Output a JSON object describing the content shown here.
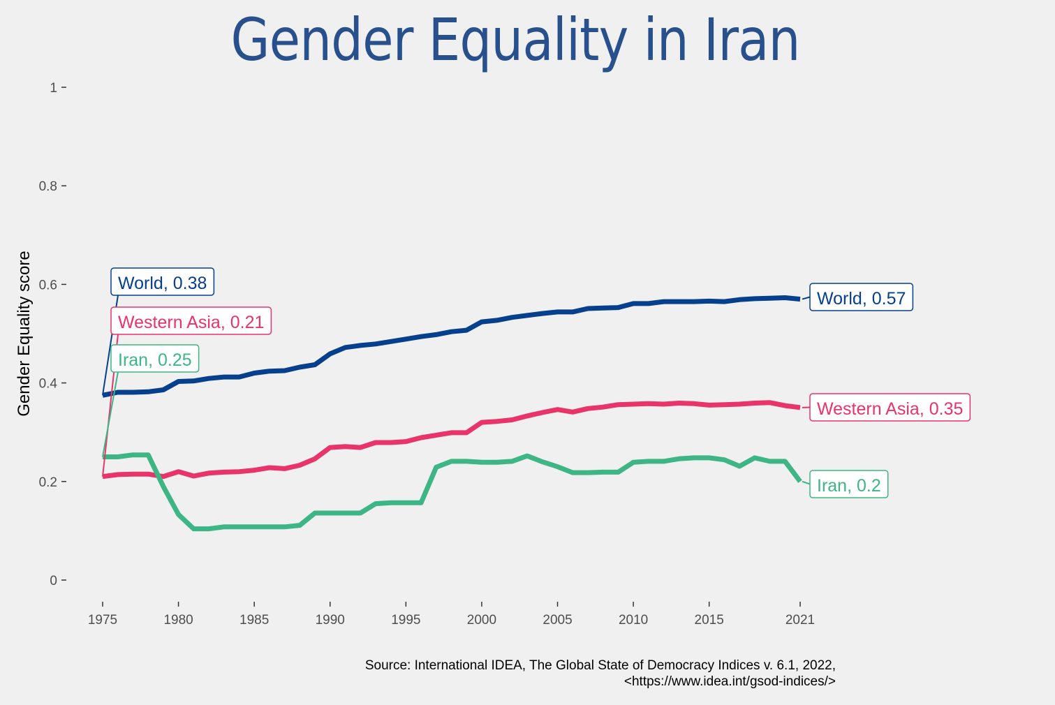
{
  "chart_data": {
    "type": "line",
    "title": "Gender Equality in Iran",
    "ylabel": "Gender Equality score",
    "xlabel": "",
    "ylim": [
      0,
      1
    ],
    "yticks": [
      0,
      0.2,
      0.4,
      0.6,
      0.8,
      1
    ],
    "ytick_labels": [
      "0",
      "0.2",
      "0.4",
      "0.6",
      "0.8",
      "1"
    ],
    "xticks": [
      1975,
      1980,
      1985,
      1990,
      1995,
      2000,
      2005,
      2010,
      2015,
      2021
    ],
    "xtick_labels": [
      "1975",
      "1980",
      "1985",
      "1990",
      "1995",
      "2000",
      "2005",
      "2010",
      "2015",
      "2021"
    ],
    "grid": false,
    "x": [
      1975,
      1976,
      1977,
      1978,
      1979,
      1980,
      1981,
      1982,
      1983,
      1984,
      1985,
      1986,
      1987,
      1988,
      1989,
      1990,
      1991,
      1992,
      1993,
      1994,
      1995,
      1996,
      1997,
      1998,
      1999,
      2000,
      2001,
      2002,
      2003,
      2004,
      2005,
      2006,
      2007,
      2008,
      2009,
      2010,
      2011,
      2012,
      2013,
      2014,
      2015,
      2016,
      2017,
      2018,
      2019,
      2020,
      2021
    ],
    "series": [
      {
        "name": "World",
        "color": "#063f8c",
        "values": [
          0.375,
          0.381,
          0.381,
          0.382,
          0.386,
          0.403,
          0.404,
          0.409,
          0.412,
          0.412,
          0.42,
          0.424,
          0.425,
          0.432,
          0.437,
          0.459,
          0.472,
          0.476,
          0.479,
          0.484,
          0.489,
          0.494,
          0.498,
          0.504,
          0.507,
          0.524,
          0.527,
          0.533,
          0.537,
          0.541,
          0.544,
          0.544,
          0.551,
          0.552,
          0.553,
          0.561,
          0.561,
          0.565,
          0.565,
          0.565,
          0.566,
          0.565,
          0.569,
          0.571,
          0.572,
          0.573,
          0.57
        ],
        "start_label": "World, 0.38",
        "end_label": "World, 0.57"
      },
      {
        "name": "Western Asia",
        "color": "#e8336b",
        "values": [
          0.21,
          0.214,
          0.215,
          0.215,
          0.21,
          0.22,
          0.211,
          0.217,
          0.219,
          0.22,
          0.223,
          0.228,
          0.226,
          0.233,
          0.246,
          0.269,
          0.271,
          0.269,
          0.279,
          0.279,
          0.281,
          0.289,
          0.294,
          0.299,
          0.299,
          0.32,
          0.322,
          0.325,
          0.333,
          0.34,
          0.346,
          0.341,
          0.348,
          0.351,
          0.356,
          0.357,
          0.358,
          0.357,
          0.359,
          0.358,
          0.355,
          0.356,
          0.357,
          0.359,
          0.36,
          0.354,
          0.35
        ],
        "start_label": "Western Asia, 0.21",
        "end_label": "Western Asia, 0.35"
      },
      {
        "name": "Iran",
        "color": "#3db584",
        "values": [
          0.25,
          0.25,
          0.254,
          0.254,
          0.19,
          0.133,
          0.104,
          0.104,
          0.108,
          0.108,
          0.108,
          0.108,
          0.108,
          0.111,
          0.136,
          0.136,
          0.136,
          0.136,
          0.155,
          0.157,
          0.157,
          0.157,
          0.229,
          0.241,
          0.241,
          0.239,
          0.239,
          0.241,
          0.252,
          0.24,
          0.23,
          0.218,
          0.218,
          0.219,
          0.219,
          0.239,
          0.241,
          0.241,
          0.246,
          0.248,
          0.248,
          0.244,
          0.231,
          0.248,
          0.241,
          0.241,
          0.2
        ],
        "start_label": "Iran, 0.25",
        "end_label": "Iran, 0.2"
      }
    ],
    "source_line1": "Source: International IDEA, The Global State of Democracy Indices v. 6.1, 2022,",
    "source_line2": "<https://www.idea.int/gsod-indices/>"
  }
}
